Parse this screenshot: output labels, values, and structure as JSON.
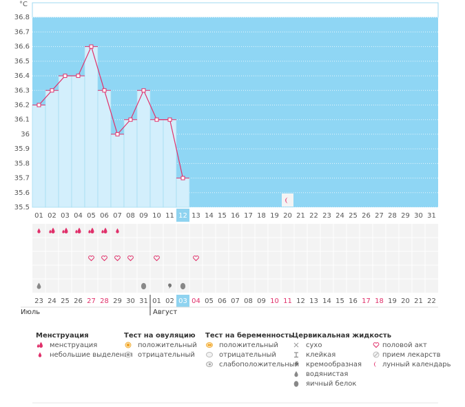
{
  "chart_data": {
    "type": "line",
    "ylabel": "°C",
    "categories": [
      "01",
      "02",
      "03",
      "04",
      "05",
      "06",
      "07",
      "08",
      "09",
      "10",
      "11",
      "12",
      "13",
      "14",
      "15",
      "16",
      "17",
      "18",
      "19",
      "20",
      "21",
      "22",
      "23",
      "24",
      "25",
      "26",
      "27",
      "28",
      "29",
      "30",
      "31"
    ],
    "values": [
      36.2,
      36.3,
      36.4,
      36.4,
      36.6,
      36.3,
      36.0,
      36.1,
      36.3,
      36.1,
      36.1,
      35.7,
      null,
      null,
      null,
      null,
      null,
      null,
      null,
      null,
      null,
      null,
      null,
      null,
      null,
      null,
      null,
      null,
      null,
      null,
      null
    ],
    "ylim": [
      35.5,
      36.9
    ],
    "yticks": [
      35.5,
      35.6,
      35.7,
      35.8,
      35.9,
      36,
      36.1,
      36.2,
      36.3,
      36.4,
      36.5,
      36.6,
      36.7,
      36.8
    ],
    "color": "#e0306a",
    "grid": true
  },
  "dates": [
    "23",
    "24",
    "25",
    "26",
    "27",
    "28",
    "29",
    "30",
    "31",
    "01",
    "02",
    "03",
    "04",
    "05",
    "06",
    "07",
    "08",
    "09",
    "10",
    "11",
    "12",
    "13",
    "14",
    "15",
    "16",
    "17",
    "18",
    "19",
    "20",
    "21",
    "22"
  ],
  "months": [
    "Июль",
    "Август"
  ],
  "legend": [
    {
      "title": "Менструация",
      "items": [
        "менструация",
        "небольшие выделения"
      ]
    },
    {
      "title": "Тест на овуляцию",
      "items": [
        "положительный",
        "отрицательный"
      ]
    },
    {
      "title": "Тест на беременность",
      "items": [
        "положительный",
        "отрицательный",
        "слабоположительный"
      ]
    },
    {
      "title": "Цервикальная жидкость",
      "items": [
        "сухо",
        "клейкая",
        "кремообразная",
        "водянистая",
        "яичный белок"
      ]
    }
  ],
  "legend_extra": [
    "половой акт",
    "прием лекарств",
    "лунный календарь"
  ]
}
